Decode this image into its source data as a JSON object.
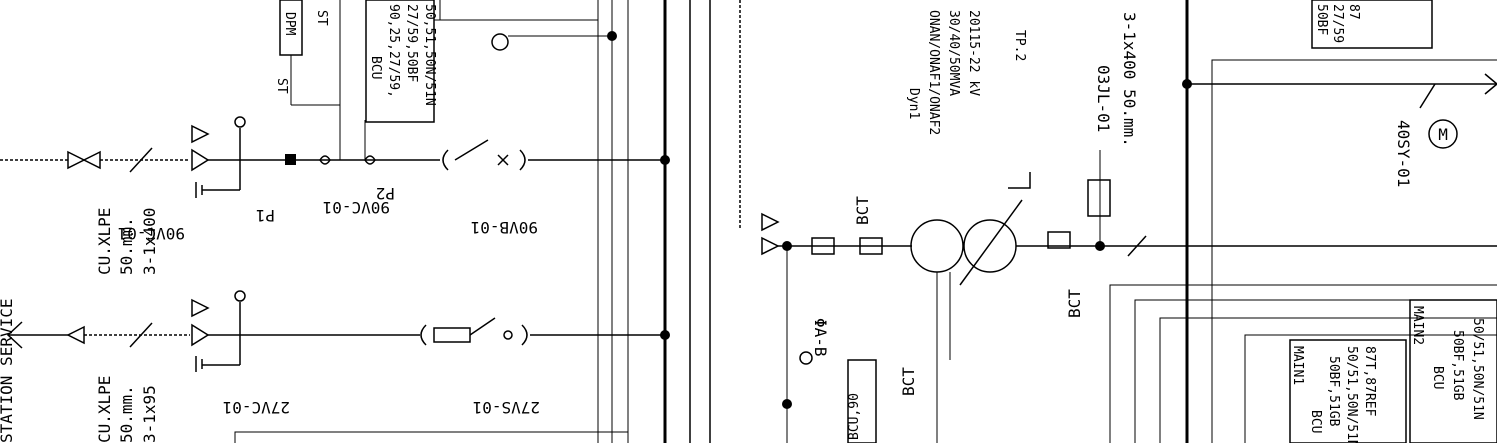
{
  "labels": {
    "station_service": "STATION SERVICE",
    "cable1_a": "3-1x400",
    "cable1_b": "50.mm.",
    "cable1_c": "CU.XLPE",
    "cable2_a": "3-1x95",
    "cable2_b": "50.mm.",
    "cable2_c": "CU.XLPE",
    "vac90": "90VC-01",
    "vac90b": "90VC-01",
    "p1": "P1",
    "p2": "P2",
    "vb90": "90VB-01",
    "vc27": "27VC-01",
    "vs27": "27VS-01",
    "st1": "ST",
    "st2": "ST",
    "dpm": "DPM",
    "bcu_top_1": "BCU",
    "bcu_top_2": "50,51,50N/51N",
    "bcu_top_3": "27/59,50BF",
    "bcu_top_4": "90,25,27/59,",
    "bct1": "BCT",
    "bct2": "BCT",
    "bct3": "BCT",
    "pt_av_b": "ΦA-B",
    "bcu_low": "BCU,90",
    "tx_1": "Dyn1",
    "tx_2": "ONAN/ONAF1/ONAF2",
    "tx_3": "30/40/50MVA",
    "tx_4": "20115-22 kV",
    "tx_5": "TP.2",
    "cable3_a": "3-1x400 50.mm.",
    "cable3_b": "03JL-01",
    "sy40": "40SY-01",
    "main1": "MAIN1",
    "main1_b1": "BCU",
    "main1_b2": "50BF,51GB",
    "main1_b3": "87T,87REF",
    "main1_b4": "50/51,50N/51N",
    "main2": "MAIN2",
    "main2_b1": "BCU",
    "main2_b2": "50BF,51GB",
    "main2_b3": "50/51,50N/51N",
    "right_box_1": "50BF",
    "right_box_2": "27/59",
    "right_box_3": "87",
    "motor": "M"
  }
}
